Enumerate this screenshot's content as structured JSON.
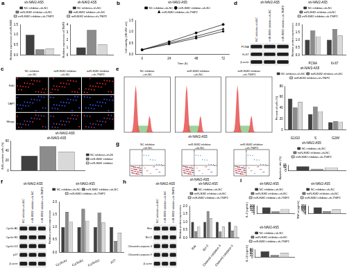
{
  "chart_data": [
    {
      "panel": "a",
      "type": "bar",
      "title": "sh-NAV2-AS5",
      "y_label": "Relative expression of miR-8082",
      "categories": [
        null
      ],
      "series": [
        {
          "name": "NC inhibitor+sh-NC",
          "color": "#404040",
          "values": [
            1.0
          ]
        },
        {
          "name": "miR-8082 inhibitor+sh-NC",
          "color": "#8c8c8c",
          "values": [
            0.28
          ]
        },
        {
          "name": "miR-8082 inhibitor+sh-TNIP2",
          "color": "#d9d9d9",
          "values": [
            0.32
          ]
        }
      ],
      "ylim": [
        0,
        1.5
      ],
      "yticks": [
        {
          "value": 0,
          "label": "0.0"
        },
        0.5,
        {
          "value": 1,
          "label": "1.0"
        },
        1.5
      ],
      "grid": false,
      "legend": "top"
    },
    {
      "type": "bar",
      "title": "sh-NAV2-AS5",
      "y_label": "Relative expression of TNIP2",
      "categories": [
        null
      ],
      "series": [
        {
          "name": "NC inhibitor+sh-NC",
          "color": "#404040",
          "values": [
            1.0
          ]
        },
        {
          "name": "miR-8082 inhibitor+sh-NC",
          "color": "#8c8c8c",
          "values": [
            3.3
          ]
        },
        {
          "name": "miR-8082 inhibitor+sh-TNIP2",
          "color": "#d9d9d9",
          "values": [
            1.4
          ]
        }
      ],
      "ylim": [
        0,
        4
      ],
      "yticks": [
        0,
        1,
        2,
        3,
        4
      ],
      "grid": false,
      "legend": "top"
    },
    {
      "panel": "b",
      "type": "line",
      "title": "sh-NAV2-AS5",
      "x_label": "Time (h)",
      "y_label": "Cell viability (OD 450 nm)",
      "x": [
        0,
        24,
        48,
        72
      ],
      "xlim": [
        -6,
        78
      ],
      "xticks": [
        0,
        24,
        48,
        72
      ],
      "ylim": [
        0,
        1.5
      ],
      "yticks": [
        {
          "value": 0,
          "label": "0.0"
        },
        0.5,
        {
          "value": 1,
          "label": "1.0"
        },
        1.5
      ],
      "series": [
        {
          "name": "NC inhibitor+sh-NC",
          "color": "#000000",
          "marker": "square",
          "values": [
            0.21,
            0.46,
            0.72,
            1.02
          ]
        },
        {
          "name": "miR-8082 inhibitor+sh-NC",
          "color": "#000000",
          "marker": "circle",
          "values": [
            0.21,
            0.56,
            0.95,
            1.32
          ]
        },
        {
          "name": "miR-8082 inhibitor+sh-TNIP2",
          "color": "#000000",
          "marker": "triangle",
          "values": [
            0.21,
            0.5,
            0.8,
            1.12
          ]
        }
      ],
      "grid": false,
      "legend": "top"
    },
    {
      "type": "bar",
      "title": "sh-NAV2-AS5",
      "y_label": "EdU positive cells (%)",
      "categories": [
        null
      ],
      "series": [
        {
          "name": "NC inhibitor+sh-NC",
          "color": "#404040",
          "values": [
            30
          ]
        },
        {
          "name": "miR-8082 inhibitor+sh-NC",
          "color": "#8c8c8c",
          "values": [
            49
          ]
        },
        {
          "name": "miR-8082 inhibitor+sh-TNIP2",
          "color": "#d9d9d9",
          "values": [
            38
          ]
        }
      ],
      "ylim": [
        0,
        60
      ],
      "yticks": [
        0,
        20,
        40,
        60
      ],
      "grid": false,
      "legend": "right"
    },
    {
      "type": "bar",
      "title": "sh-NAV2-AS5",
      "y_label": "Relative protein expression",
      "categories": [
        "PCNA",
        "Ki-67"
      ],
      "series": [
        {
          "name": "NC inhibitor+sh-NC",
          "color": "#404040",
          "values": [
            1.0,
            1.0
          ]
        },
        {
          "name": "miR-8082 inhibitor+sh-NC",
          "color": "#8c8c8c",
          "values": [
            1.62,
            1.7
          ]
        },
        {
          "name": "miR-8082 inhibitor+sh-TNIP2",
          "color": "#d9d9d9",
          "values": [
            1.22,
            1.28
          ]
        }
      ],
      "ylim": [
        0,
        2
      ],
      "yticks": [
        {
          "value": 0,
          "label": "0.0"
        },
        0.5,
        {
          "value": 1,
          "label": "1.0"
        },
        1.5,
        {
          "value": 2,
          "label": "2.0"
        }
      ],
      "grid": false,
      "legend": "top"
    },
    {
      "type": "bar",
      "title": "sh-NAV2-AS5",
      "y_label": "Percent of cells (%)",
      "categories": [
        "G1/G0",
        "S",
        "G2/M"
      ],
      "series": [
        {
          "name": "NC inhibitor+sh-NC",
          "color": "#404040",
          "values": [
            57,
            29,
            14
          ]
        },
        {
          "name": "miR-8082 inhibitor+sh-NC",
          "color": "#8c8c8c",
          "values": [
            41,
            43,
            16
          ]
        },
        {
          "name": "miR-8082 inhibitor+sh-TNIP2",
          "color": "#d9d9d9",
          "values": [
            51,
            34,
            15
          ]
        }
      ],
      "ylim": [
        0,
        80
      ],
      "yticks": [
        0,
        20,
        40,
        60,
        80
      ],
      "grid": false,
      "legend": "top"
    },
    {
      "type": "bar",
      "title": "sh-NAV2-AS5",
      "y_label": "Relative protein expression",
      "categories": [
        "CyclinA1",
        "CyclinB1",
        "CyclinD2",
        "p27"
      ],
      "series": [
        {
          "name": "NC inhibitor+sh-NC",
          "color": "#404040",
          "values": [
            1.0,
            1.0,
            1.0,
            1.0
          ]
        },
        {
          "name": "miR-8082 inhibitor+sh-NC",
          "color": "#8c8c8c",
          "values": [
            1.6,
            1.72,
            1.58,
            0.45
          ]
        },
        {
          "name": "miR-8082 inhibitor+sh-TNIP2",
          "color": "#d9d9d9",
          "values": [
            1.2,
            1.25,
            1.18,
            0.78
          ]
        }
      ],
      "ylim": [
        0,
        2
      ],
      "yticks": [
        {
          "value": 0,
          "label": "0.0"
        },
        0.5,
        {
          "value": 1,
          "label": "1.0"
        },
        1.5,
        {
          "value": 2,
          "label": "2.0"
        }
      ],
      "grid": false,
      "legend": "top"
    },
    {
      "type": "bar",
      "title": "sh-NAV2-AS5",
      "y_label": "Apoptosis rate (%)",
      "categories": [
        null
      ],
      "series": [
        {
          "name": "NC inhibitor+sh-NC",
          "color": "#404040",
          "values": [
            11.8
          ]
        },
        {
          "name": "miR-8082 inhibitor+sh-NC",
          "color": "#8c8c8c",
          "values": [
            5.2
          ]
        },
        {
          "name": "miR-8082 inhibitor+sh-TNIP2",
          "color": "#d9d9d9",
          "values": [
            9.1
          ]
        }
      ],
      "ylim": [
        0,
        15
      ],
      "yticks": [
        0,
        5,
        10,
        15
      ],
      "grid": false,
      "legend": "top"
    },
    {
      "type": "bar",
      "title": "sh-NAV2-AS5",
      "y_label": "Relative protein expression",
      "categories": [
        "Bax",
        "Bcl-2",
        "Cleaved-caspase-3",
        "Cleaved-caspase-9"
      ],
      "series": [
        {
          "name": "NC inhibitor+sh-NC",
          "color": "#404040",
          "values": [
            1.0,
            1.0,
            1.0,
            1.0
          ]
        },
        {
          "name": "miR-8082 inhibitor+sh-NC",
          "color": "#8c8c8c",
          "values": [
            0.42,
            1.68,
            0.4,
            0.45
          ]
        },
        {
          "name": "miR-8082 inhibitor+sh-TNIP2",
          "color": "#d9d9d9",
          "values": [
            0.72,
            1.22,
            0.7,
            0.74
          ]
        }
      ],
      "ylim": [
        0,
        2
      ],
      "yticks": [
        {
          "value": 0,
          "label": "0.0"
        },
        0.5,
        {
          "value": 1,
          "label": "1.0"
        },
        1.5,
        {
          "value": 2,
          "label": "2.0"
        }
      ],
      "grid": false,
      "legend": "top"
    },
    {
      "panel": "i",
      "type": "bar",
      "title": "sh-NAV2-AS5",
      "y_label": "IL-6 (pg/mL)",
      "categories": [
        null
      ],
      "series": [
        {
          "name": "NC inhibitor+sh-NC",
          "color": "#404040",
          "values": [
            162
          ]
        },
        {
          "name": "miR-8082 inhibitor+sh-NC",
          "color": "#8c8c8c",
          "values": [
            62
          ]
        },
        {
          "name": "miR-8082 inhibitor+sh-TNIP2",
          "color": "#d9d9d9",
          "values": [
            122
          ]
        }
      ],
      "ylim": [
        0,
        200
      ],
      "yticks": [
        0,
        50,
        100,
        150,
        200
      ],
      "grid": false,
      "legend": "top"
    },
    {
      "type": "bar",
      "title": "sh-NAV2-AS5",
      "y_label": "TNF-α (pg/mL)",
      "categories": [
        null
      ],
      "series": [
        {
          "name": "NC inhibitor+sh-NC",
          "color": "#404040",
          "values": [
            205
          ]
        },
        {
          "name": "miR-8082 inhibitor+sh-NC",
          "color": "#8c8c8c",
          "values": [
            82
          ]
        },
        {
          "name": "miR-8082 inhibitor+sh-TNIP2",
          "color": "#d9d9d9",
          "values": [
            150
          ]
        }
      ],
      "ylim": [
        0,
        250
      ],
      "yticks": [
        0,
        50,
        100,
        150,
        200,
        250
      ],
      "grid": false,
      "legend": "top"
    },
    {
      "type": "bar",
      "title": "sh-NAV2-AS5",
      "y_label": "IL-1β (pg/mL)",
      "categories": [
        null
      ],
      "series": [
        {
          "name": "NC inhibitor+sh-NC",
          "color": "#404040",
          "values": [
            61
          ]
        },
        {
          "name": "miR-8082 inhibitor+sh-NC",
          "color": "#8c8c8c",
          "values": [
            24
          ]
        },
        {
          "name": "miR-8082 inhibitor+sh-TNIP2",
          "color": "#d9d9d9",
          "values": [
            45
          ]
        }
      ],
      "ylim": [
        0,
        80
      ],
      "yticks": [
        0,
        20,
        40,
        60,
        80
      ],
      "grid": false,
      "legend": "top"
    }
  ],
  "images": [
    {
      "panel": "c",
      "kind": "micrograph",
      "row_labels": [
        "EdU",
        "DAPI",
        "Merge"
      ],
      "column_labels": [
        "NC inhibitor+sh-NC",
        "miR-8082 inhibitor+sh-NC",
        "miR-8082 inhibitor+sh-TNIP2"
      ],
      "caption": "sh-NAV2-AS5"
    },
    {
      "panel": "d",
      "kind": "blot",
      "row_labels": [
        "PCNA",
        "Ki-67",
        "β-actin"
      ],
      "column_labels": [
        "NC inhibitor+sh-NC",
        "miR-8082 inhibitor+sh-NC",
        "miR-8082 inhibitor+sh-TNIP2"
      ],
      "caption": "sh-NAV2-AS5"
    },
    {
      "panel": "e",
      "kind": "histogram",
      "column_labels": [
        "NC inhibitor+sh-NC",
        "miR-8082 inhibitor+sh-NC",
        "miR-8082 inhibitor+sh-TNIP2"
      ],
      "caption": "sh-NAV2-AS5"
    },
    {
      "panel": "f",
      "kind": "blot",
      "row_labels": [
        "Cyclin A1",
        "Cyclin B1",
        "Cyclin D2",
        "p27",
        "β-actin"
      ],
      "column_labels": [
        "NC inhibitor+sh-NC",
        "miR-8082 inhibitor+sh-NC",
        "miR-8082 inhibitor+sh-TNIP2"
      ],
      "caption": "sh-NAV2-AS5"
    },
    {
      "panel": "g",
      "kind": "dotplot",
      "column_labels": [
        "NC inhibitor+sh-NC",
        "miR-8082 inhibitor+sh-NC",
        "miR-8082 inhibitor+sh-TNIP2"
      ],
      "caption": "sh-NAV2-AS5"
    },
    {
      "panel": "h",
      "kind": "blot",
      "row_labels": [
        "Bax",
        "Bcl-2",
        "Cleaved-caspase-3",
        "Cleaved-caspase-9",
        "β-actin"
      ],
      "column_labels": [
        "NC inhibitor+sh-NC",
        "miR-8082 inhibitor+sh-NC",
        "miR-8082 inhibitor+sh-TNIP2"
      ],
      "caption": "sh-NAV2-AS5"
    }
  ]
}
